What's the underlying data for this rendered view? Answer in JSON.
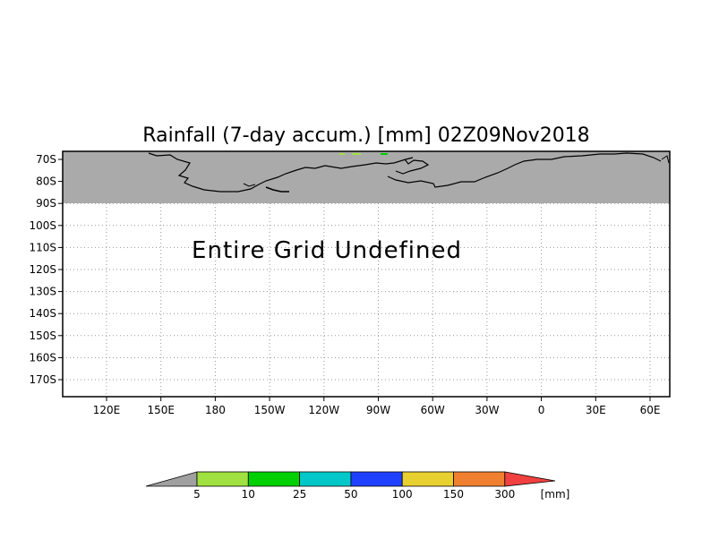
{
  "title": "Rainfall (7-day accum.) [mm] 02Z09Nov2018",
  "message": "Entire Grid Undefined",
  "map": {
    "lat_labels": [
      "70S",
      "80S",
      "90S",
      "100S",
      "110S",
      "120S",
      "130S",
      "140S",
      "150S",
      "160S",
      "170S"
    ],
    "lon_labels": [
      "120E",
      "150E",
      "180",
      "150W",
      "120W",
      "90W",
      "60W",
      "30W",
      "0",
      "30E",
      "60E"
    ],
    "mask_color": "#aaaaaa",
    "land_outline_color": "#000000",
    "grid": "dotted"
  },
  "colorbar": {
    "unit": "[mm]",
    "under_color": "#a0a0a0",
    "over_color": "#f04040",
    "bins": [
      {
        "color": "#a0e040"
      },
      {
        "color": "#00d000"
      },
      {
        "color": "#00c8c8"
      },
      {
        "color": "#2040ff"
      },
      {
        "color": "#e8d030"
      },
      {
        "color": "#f08030"
      }
    ],
    "labels": [
      "5",
      "10",
      "25",
      "50",
      "100",
      "150",
      "300"
    ]
  }
}
